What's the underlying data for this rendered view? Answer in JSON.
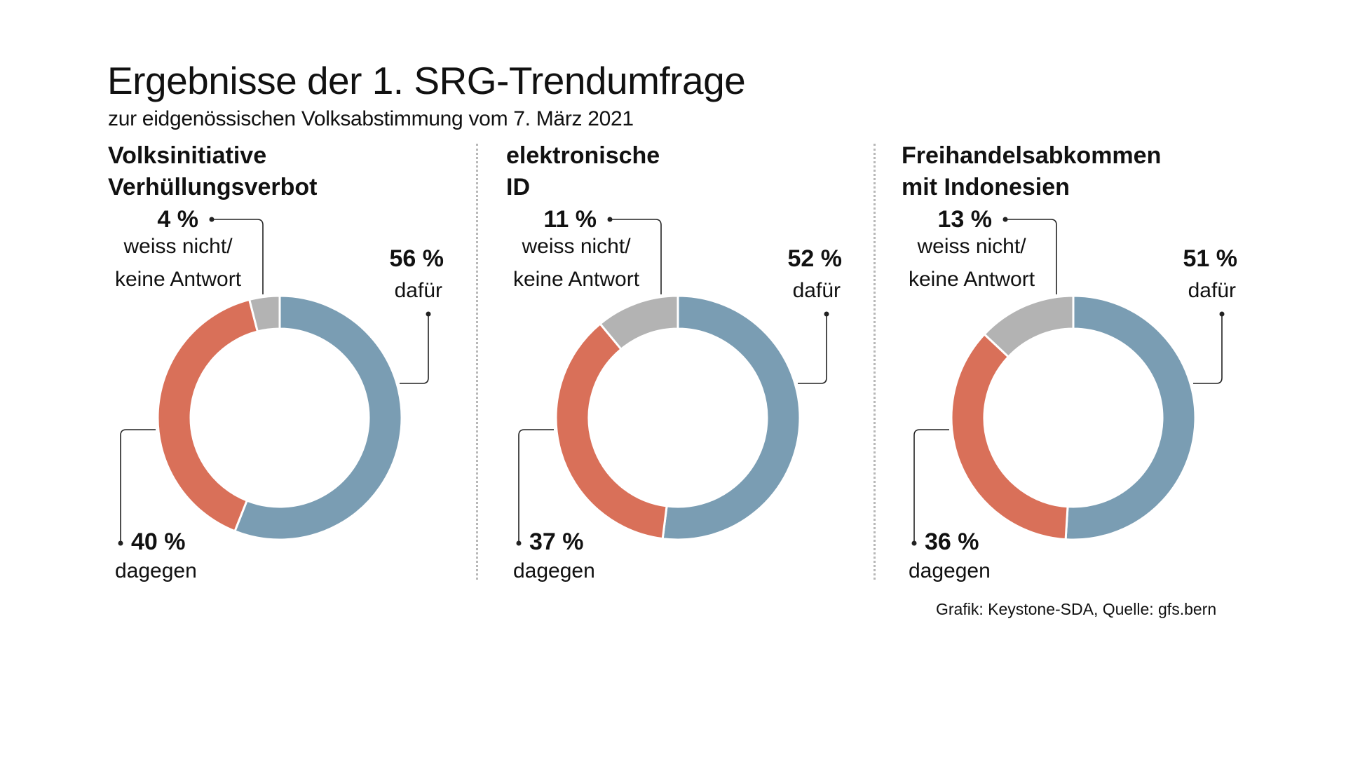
{
  "header": {
    "title": "Ergebnisse der 1. SRG-Trendumfrage",
    "subtitle": "zur eidgenössischen Volksabstimmung vom 7. März 2021"
  },
  "colors": {
    "dafuer": "#7a9db3",
    "dagegen": "#d97059",
    "weiss_nicht": "#b3b3b3",
    "leader": "#222222",
    "separator": "#b8b8b8"
  },
  "chart_data": [
    {
      "type": "pie",
      "variant": "donut",
      "title": "Volksinitiative Verhüllungsverbot",
      "title_lines": [
        "Volksinitiative",
        "Verhüllungsverbot"
      ],
      "categories": [
        "dafür",
        "dagegen",
        "weiss nicht/ keine Antwort"
      ],
      "values": [
        56,
        40,
        4
      ],
      "unit": "%",
      "labels": {
        "dafuer_pct": "56 %",
        "dafuer_text": "dafür",
        "dagegen_pct": "40 %",
        "dagegen_text": "dagegen",
        "na_pct": "4 %",
        "na_text_1": "weiss nicht/",
        "na_text_2": "keine Antwort"
      }
    },
    {
      "type": "pie",
      "variant": "donut",
      "title": "elektronische ID",
      "title_lines": [
        "elektronische",
        "ID"
      ],
      "categories": [
        "dafür",
        "dagegen",
        "weiss nicht/ keine Antwort"
      ],
      "values": [
        52,
        37,
        11
      ],
      "unit": "%",
      "labels": {
        "dafuer_pct": "52 %",
        "dafuer_text": "dafür",
        "dagegen_pct": "37 %",
        "dagegen_text": "dagegen",
        "na_pct": "11 %",
        "na_text_1": "weiss nicht/",
        "na_text_2": "keine Antwort"
      }
    },
    {
      "type": "pie",
      "variant": "donut",
      "title": "Freihandelsabkommen mit Indonesien",
      "title_lines": [
        "Freihandelsabkommen",
        "mit Indonesien"
      ],
      "categories": [
        "dafür",
        "dagegen",
        "weiss nicht/ keine Antwort"
      ],
      "values": [
        51,
        36,
        13
      ],
      "unit": "%",
      "labels": {
        "dafuer_pct": "51 %",
        "dafuer_text": "dafür",
        "dagegen_pct": "36 %",
        "dagegen_text": "dagegen",
        "na_pct": "13 %",
        "na_text_1": "weiss nicht/",
        "na_text_2": "keine Antwort"
      }
    }
  ],
  "footer": {
    "source": "Grafik: Keystone-SDA, Quelle: gfs.bern"
  }
}
